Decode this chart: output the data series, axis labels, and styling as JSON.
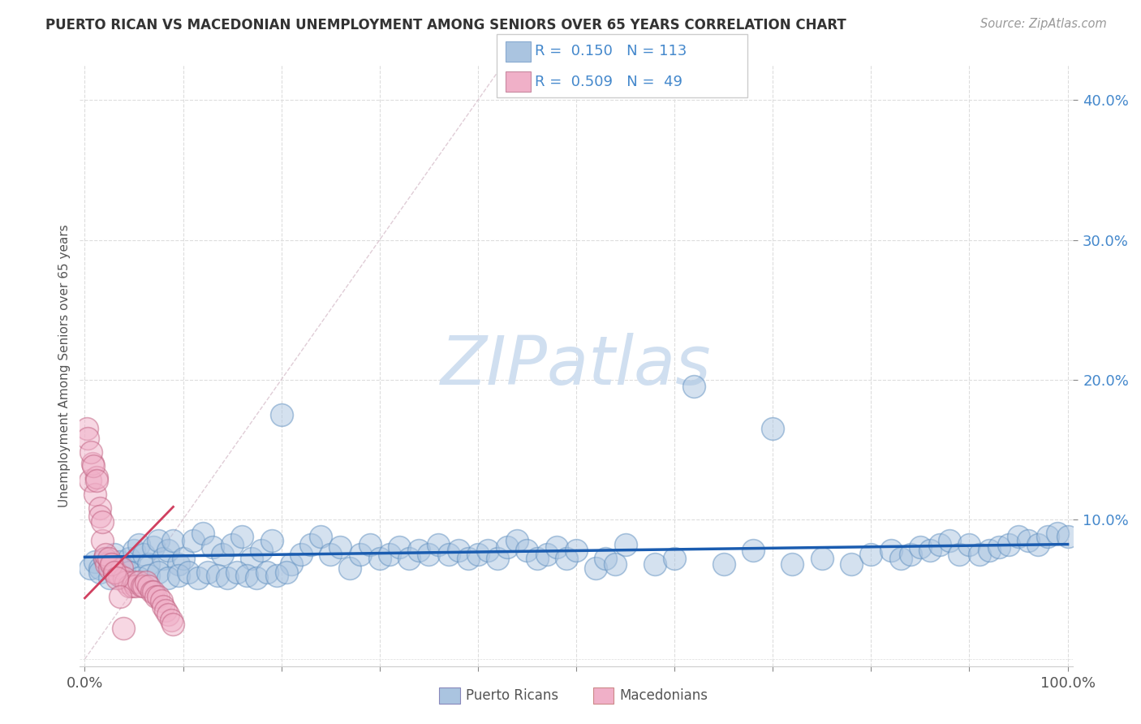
{
  "title": "PUERTO RICAN VS MACEDONIAN UNEMPLOYMENT AMONG SENIORS OVER 65 YEARS CORRELATION CHART",
  "source": "Source: ZipAtlas.com",
  "ylabel": "Unemployment Among Seniors over 65 years",
  "xlim": [
    -0.005,
    1.005
  ],
  "ylim": [
    -0.005,
    0.425
  ],
  "blue_R": 0.15,
  "blue_N": 113,
  "pink_R": 0.509,
  "pink_N": 49,
  "blue_color": "#aac4e0",
  "pink_color": "#f0b0c8",
  "blue_line_color": "#1a5cb0",
  "pink_line_color": "#d04060",
  "diag_color": "#d8c0cc",
  "watermark": "ZIPatlas",
  "watermark_color": "#d0dff0",
  "ytick_color": "#4488cc",
  "grid_color": "#dddddd",
  "blue_scatter_x": [
    0.005,
    0.01,
    0.015,
    0.02,
    0.025,
    0.03,
    0.035,
    0.04,
    0.045,
    0.05,
    0.055,
    0.06,
    0.065,
    0.07,
    0.075,
    0.08,
    0.085,
    0.09,
    0.095,
    0.1,
    0.11,
    0.12,
    0.13,
    0.14,
    0.15,
    0.16,
    0.17,
    0.18,
    0.19,
    0.2,
    0.21,
    0.22,
    0.23,
    0.24,
    0.25,
    0.26,
    0.27,
    0.28,
    0.29,
    0.3,
    0.31,
    0.32,
    0.33,
    0.34,
    0.35,
    0.36,
    0.37,
    0.38,
    0.39,
    0.4,
    0.41,
    0.42,
    0.43,
    0.44,
    0.45,
    0.46,
    0.47,
    0.48,
    0.49,
    0.5,
    0.52,
    0.53,
    0.54,
    0.55,
    0.58,
    0.6,
    0.62,
    0.65,
    0.68,
    0.7,
    0.72,
    0.75,
    0.78,
    0.8,
    0.82,
    0.83,
    0.84,
    0.85,
    0.86,
    0.87,
    0.88,
    0.89,
    0.9,
    0.91,
    0.92,
    0.93,
    0.94,
    0.95,
    0.96,
    0.97,
    0.98,
    0.99,
    1.0,
    0.015,
    0.025,
    0.035,
    0.045,
    0.055,
    0.065,
    0.075,
    0.085,
    0.095,
    0.105,
    0.115,
    0.125,
    0.135,
    0.145,
    0.155,
    0.165,
    0.175,
    0.185,
    0.195,
    0.205
  ],
  "blue_scatter_y": [
    0.065,
    0.07,
    0.065,
    0.072,
    0.068,
    0.075,
    0.07,
    0.065,
    0.072,
    0.078,
    0.082,
    0.075,
    0.068,
    0.08,
    0.085,
    0.072,
    0.078,
    0.085,
    0.068,
    0.072,
    0.085,
    0.09,
    0.08,
    0.075,
    0.082,
    0.088,
    0.072,
    0.078,
    0.085,
    0.175,
    0.068,
    0.075,
    0.082,
    0.088,
    0.075,
    0.08,
    0.065,
    0.075,
    0.082,
    0.072,
    0.075,
    0.08,
    0.072,
    0.078,
    0.075,
    0.082,
    0.075,
    0.078,
    0.072,
    0.075,
    0.078,
    0.072,
    0.08,
    0.085,
    0.078,
    0.072,
    0.075,
    0.08,
    0.072,
    0.078,
    0.065,
    0.072,
    0.068,
    0.082,
    0.068,
    0.072,
    0.195,
    0.068,
    0.078,
    0.165,
    0.068,
    0.072,
    0.068,
    0.075,
    0.078,
    0.072,
    0.075,
    0.08,
    0.078,
    0.082,
    0.085,
    0.075,
    0.082,
    0.075,
    0.078,
    0.08,
    0.082,
    0.088,
    0.085,
    0.082,
    0.088,
    0.09,
    0.088,
    0.062,
    0.058,
    0.06,
    0.062,
    0.058,
    0.06,
    0.062,
    0.058,
    0.06,
    0.062,
    0.058,
    0.062,
    0.06,
    0.058,
    0.062,
    0.06,
    0.058,
    0.062,
    0.06,
    0.062
  ],
  "pink_scatter_x": [
    0.002,
    0.005,
    0.008,
    0.01,
    0.012,
    0.015,
    0.018,
    0.02,
    0.022,
    0.025,
    0.028,
    0.03,
    0.032,
    0.035,
    0.038,
    0.04,
    0.042,
    0.045,
    0.048,
    0.05,
    0.052,
    0.055,
    0.058,
    0.06,
    0.062,
    0.065,
    0.068,
    0.07,
    0.072,
    0.075,
    0.078,
    0.08,
    0.082,
    0.085,
    0.088,
    0.09,
    0.003,
    0.006,
    0.009,
    0.012,
    0.015,
    0.018,
    0.021,
    0.024,
    0.027,
    0.03,
    0.033,
    0.036,
    0.039
  ],
  "pink_scatter_y": [
    0.165,
    0.128,
    0.14,
    0.118,
    0.13,
    0.108,
    0.085,
    0.072,
    0.068,
    0.065,
    0.068,
    0.062,
    0.062,
    0.06,
    0.065,
    0.058,
    0.055,
    0.052,
    0.052,
    0.055,
    0.052,
    0.055,
    0.052,
    0.052,
    0.055,
    0.052,
    0.048,
    0.048,
    0.045,
    0.045,
    0.042,
    0.038,
    0.035,
    0.032,
    0.028,
    0.025,
    0.158,
    0.148,
    0.138,
    0.128,
    0.102,
    0.098,
    0.075,
    0.072,
    0.068,
    0.062,
    0.058,
    0.045,
    0.022
  ]
}
